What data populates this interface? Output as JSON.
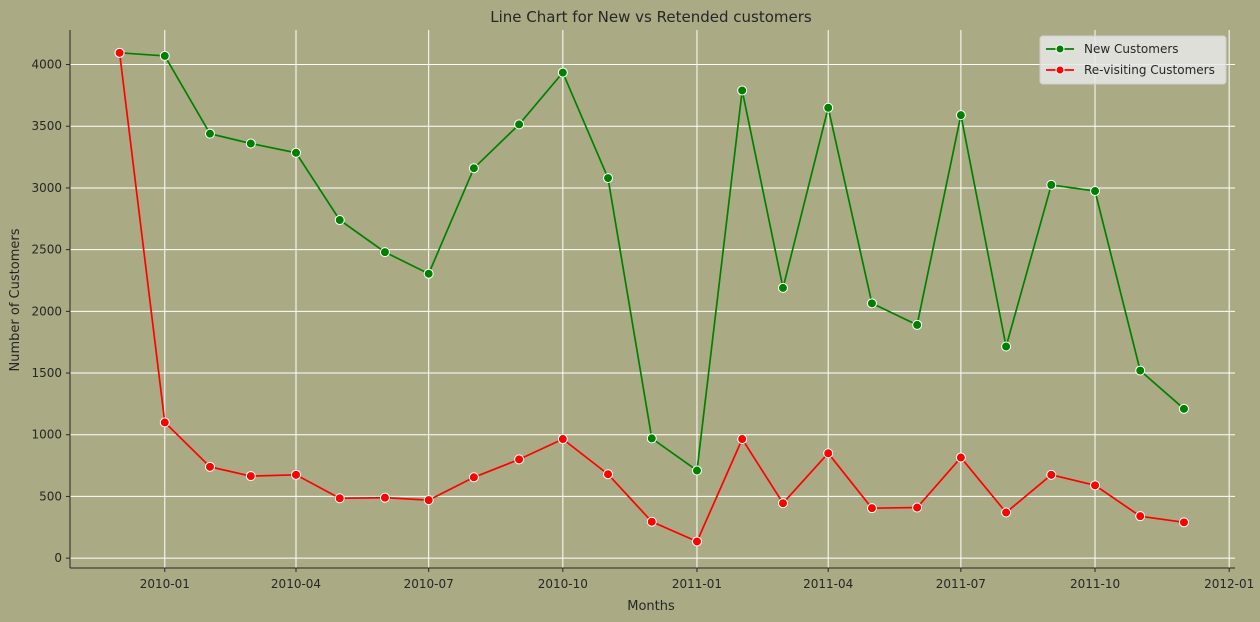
{
  "chart_data": {
    "type": "line",
    "title": "Line Chart for New vs Retended customers",
    "xlabel": "Months",
    "ylabel": "Number of Customers",
    "x_axis": "date",
    "x": [
      "2009-12",
      "2010-01",
      "2010-02",
      "2010-03",
      "2010-04",
      "2010-05",
      "2010-06",
      "2010-07",
      "2010-08",
      "2010-09",
      "2010-10",
      "2010-11",
      "2010-12",
      "2011-01",
      "2011-02",
      "2011-03",
      "2011-04",
      "2011-05",
      "2011-06",
      "2011-07",
      "2011-08",
      "2011-09",
      "2011-10",
      "2011-11",
      "2011-12"
    ],
    "xticks": [
      "2010-01",
      "2010-04",
      "2010-07",
      "2010-10",
      "2011-01",
      "2011-04",
      "2011-07",
      "2011-10",
      "2012-01"
    ],
    "xlim": [
      "2009-10-28",
      "2012-01-05"
    ],
    "ylim": [
      -80,
      4280
    ],
    "yticks": [
      0,
      500,
      1000,
      1500,
      2000,
      2500,
      3000,
      3500,
      4000
    ],
    "grid": true,
    "legend": "top-right",
    "series": [
      {
        "name": "New Customers",
        "color": "#008000",
        "values": [
          4095,
          4070,
          3440,
          3360,
          3285,
          2740,
          2480,
          2305,
          3160,
          3515,
          3935,
          3080,
          970,
          710,
          3790,
          2190,
          3650,
          2065,
          1890,
          3590,
          1715,
          3025,
          2975,
          1520,
          1210
        ]
      },
      {
        "name": "Re-visiting Customers",
        "color": "#ff0000",
        "values": [
          4095,
          1100,
          740,
          665,
          675,
          485,
          490,
          470,
          655,
          800,
          965,
          680,
          295,
          135,
          965,
          445,
          850,
          405,
          410,
          815,
          370,
          675,
          590,
          340,
          290
        ]
      }
    ]
  }
}
